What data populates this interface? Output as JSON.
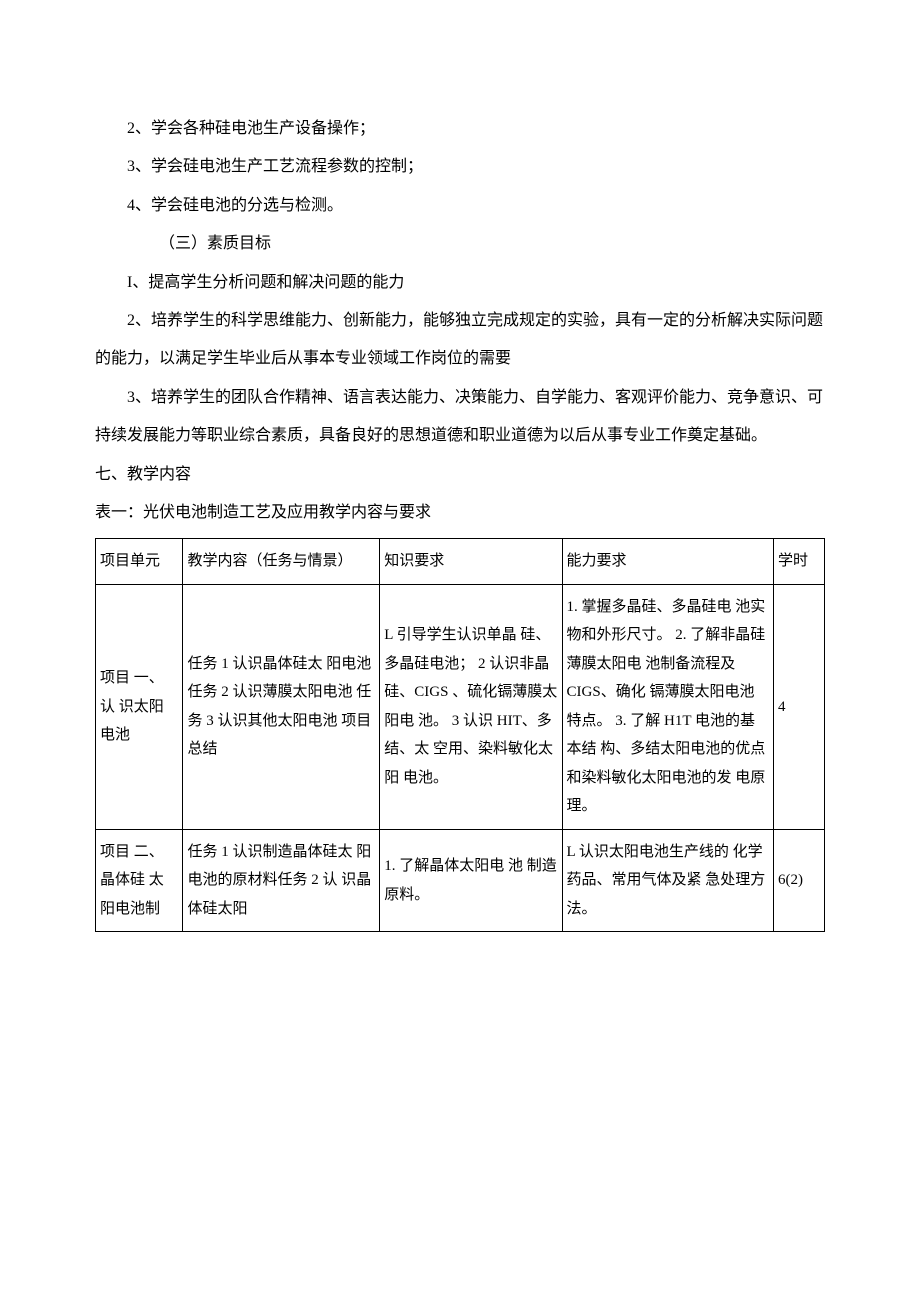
{
  "lines": {
    "l1": "2、学会各种硅电池生产设备操作；",
    "l2": "3、学会硅电池生产工艺流程参数的控制；",
    "l3": "4、学会硅电池的分选与检测。",
    "l4": "（三）素质目标",
    "l5": "I、提高学生分析问题和解决问题的能力",
    "l6": "2、培养学生的科学思维能力、创新能力，能够独立完成规定的实验，具有一定的分析解决实际问题的能力，以满足学生毕业后从事本专业领域工作岗位的需要",
    "l7": "3、培养学生的团队合作精神、语言表达能力、决策能力、自学能力、客观评价能力、竞争意识、可持续发展能力等职业综合素质，具备良好的思想道德和职业道德为以后从事专业工作奠定基础。"
  },
  "section7": "七、教学内容",
  "tableCaption": "表一：光伏电池制造工艺及应用教学内容与要求",
  "table": {
    "headers": {
      "unit": "项目单元",
      "task": "教学内容（任务与情景）",
      "knowledge": "知识要求",
      "ability": "能力要求",
      "hours": "学时"
    },
    "rows": [
      {
        "unit": "项目\n一、认\n识太阳电池",
        "task": "任务 1 认识晶体硅太\n阳电池\n任务 2 认识薄膜太阳电池\n任务 3 认识其他太阳电池\n项目总结",
        "knowledge": "L 引导学生认识单晶\n硅、多晶硅电池；\n2 认识非晶硅、CIGS\n、硫化镉薄膜太阳电\n池。\n3 认识 HIT、多结、太\n空用、染料敏化太阳\n电池。",
        "ability": "1. 掌握多晶硅、多晶硅电\n池实物和外形尺寸。\n2. 了解非晶硅薄膜太阳电\n池制备流程及 CIGS、确化\n镉薄膜太阳电池特点。\n3. 了解 H1T 电池的基本结\n构、多结太阳电池的优点\n和染料敏化太阳电池的发\n电原理。",
        "hours": "4"
      },
      {
        "unit": "项目\n二、晶体硅\n太阳电池制",
        "task": "任务 1 认识制造晶体硅太\n阳电池的原材料任务 2 认\n识晶体硅太阳",
        "knowledge": "1. 了解晶体太阳电\n池\n制造原料。",
        "ability": "L 认识太阳电池生产线的\n化学药品、常用气体及紧\n急处理方法。",
        "hours": "6(2)"
      }
    ]
  }
}
